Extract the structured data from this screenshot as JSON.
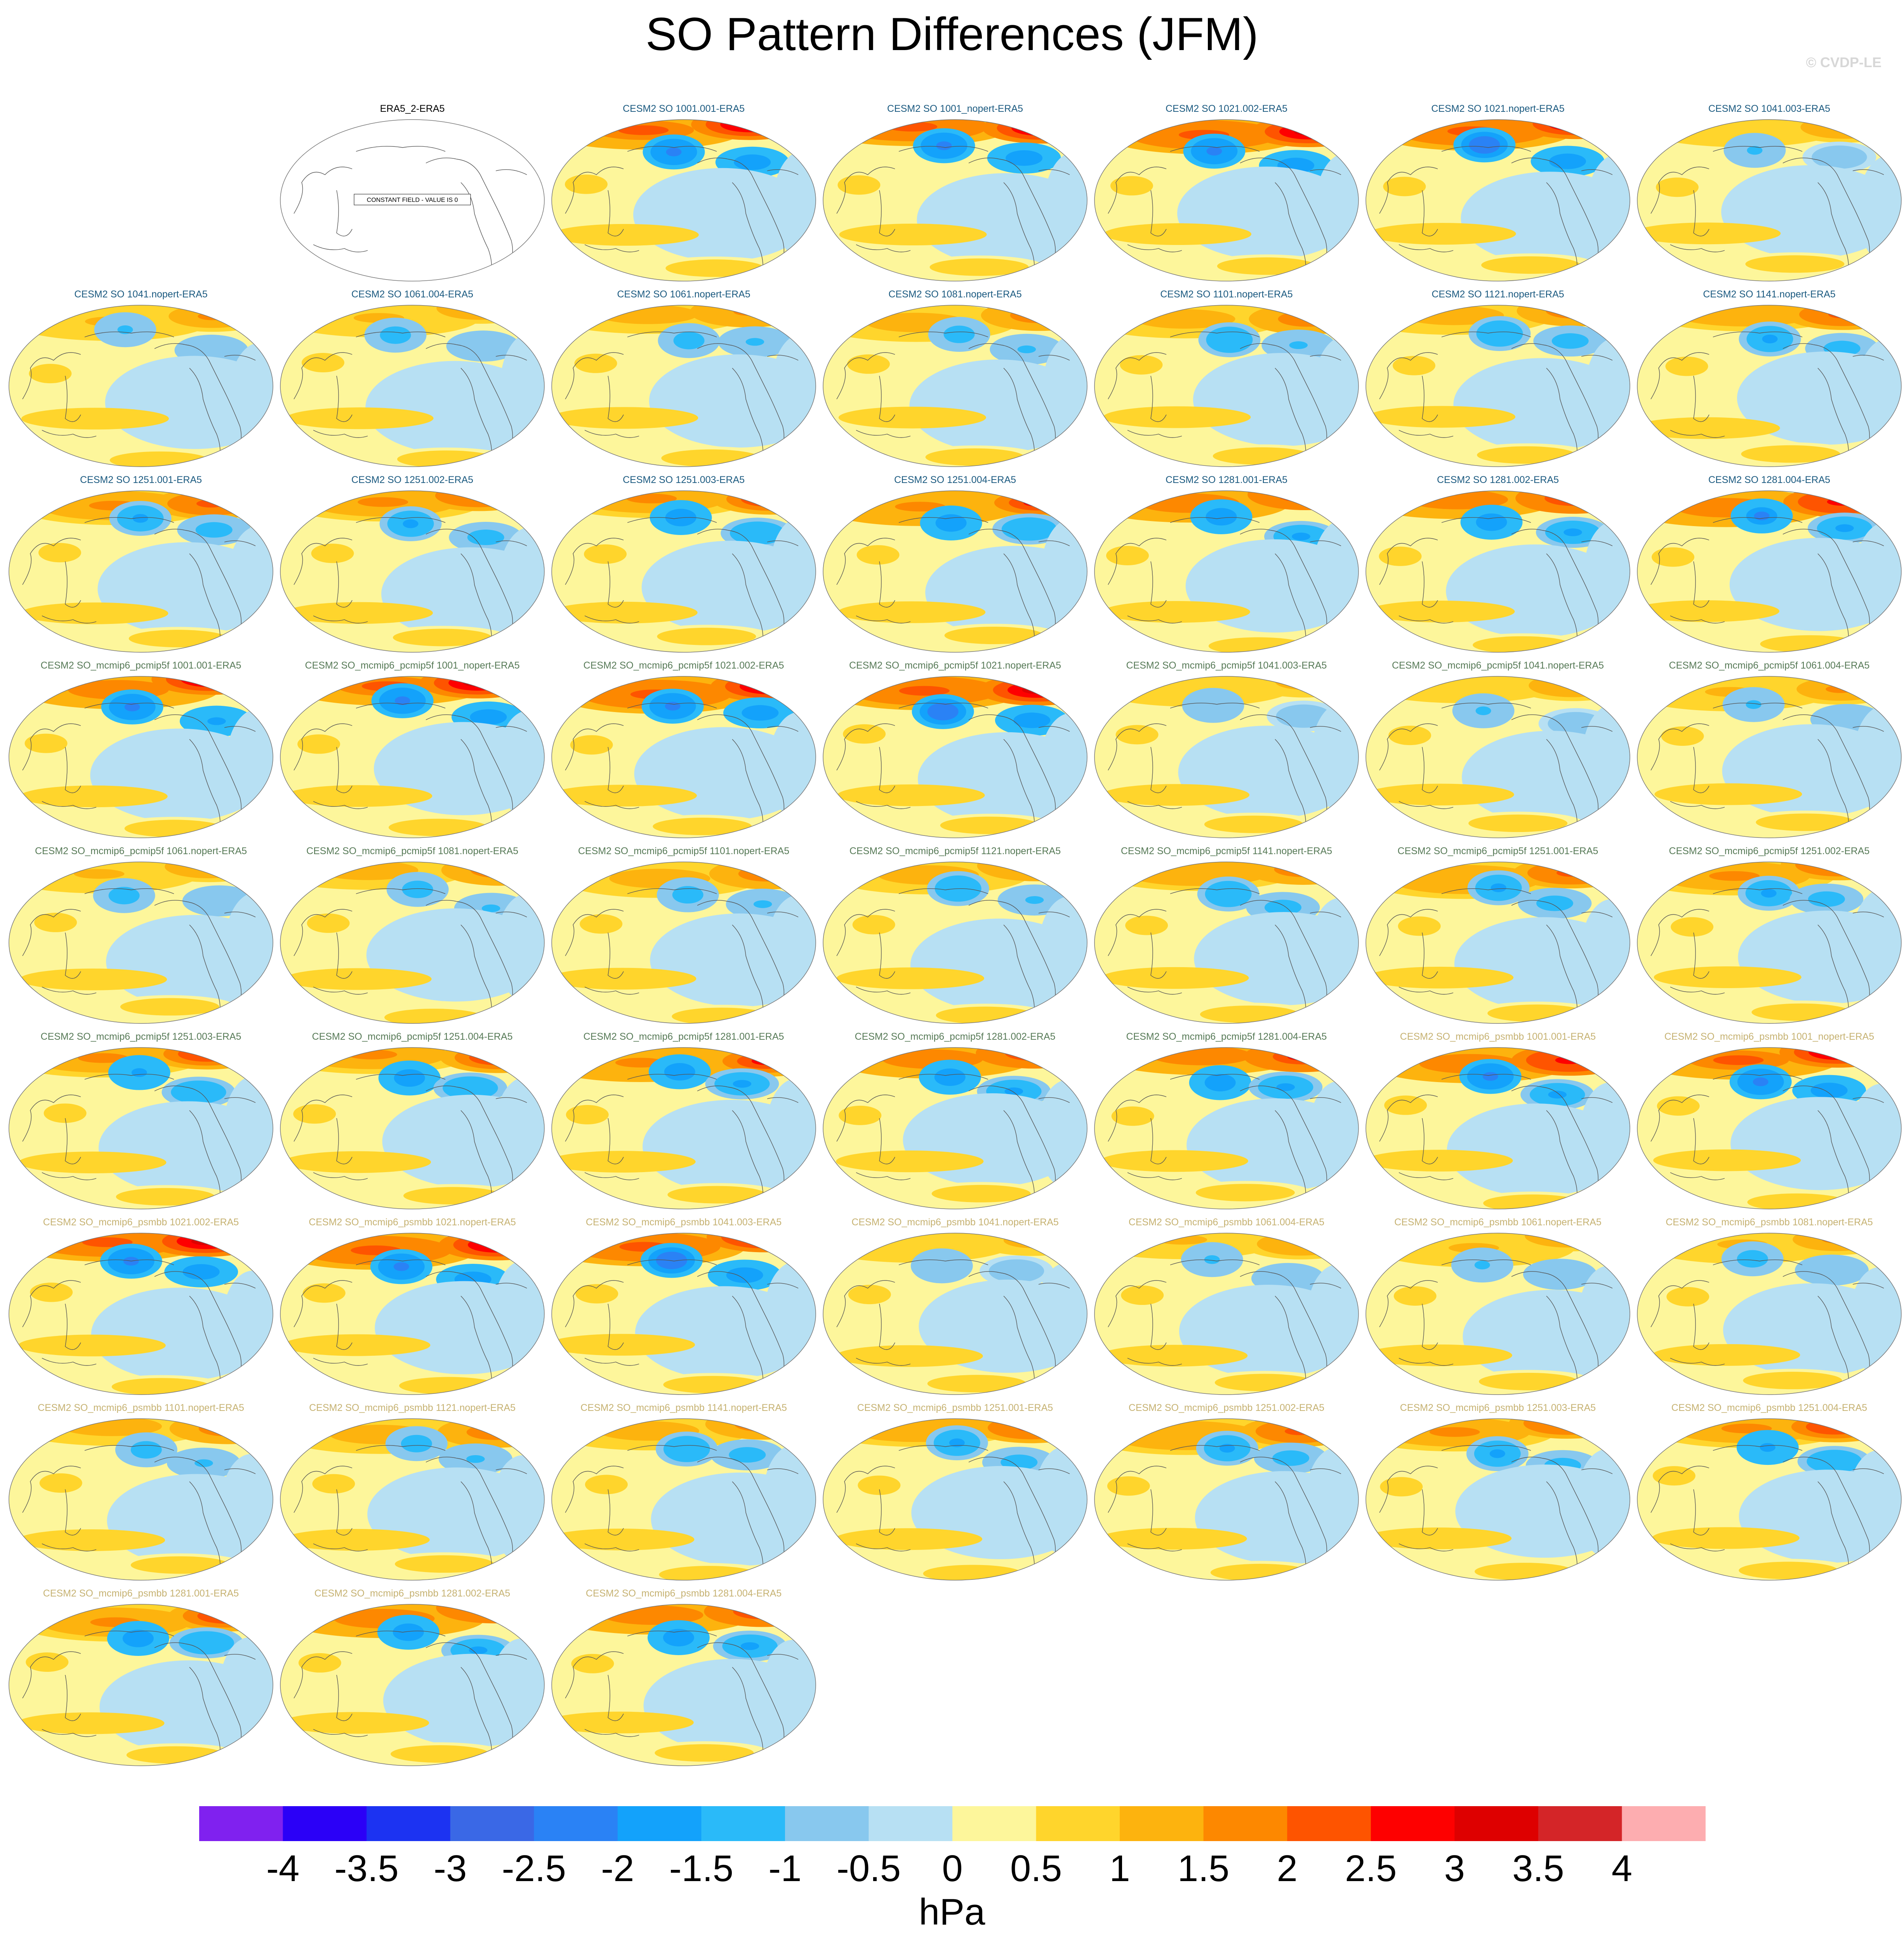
{
  "title": "SO Pattern Differences (JFM)",
  "credit": "© CVDP-LE",
  "chart_data": {
    "type": "heatmap",
    "title": "SO Pattern Differences (JFM)",
    "colorbar": {
      "units": "hPa",
      "levels": [
        "-4",
        "-3.5",
        "-3",
        "-2.5",
        "-2",
        "-1.5",
        "-1",
        "-0.5",
        "0",
        "0.5",
        "1",
        "1.5",
        "2",
        "2.5",
        "3",
        "3.5",
        "4"
      ],
      "colors": [
        "#8021ef",
        "#2b00f7",
        "#1c33f2",
        "#3a68e6",
        "#2a82f5",
        "#13a2fb",
        "#2abaf9",
        "#88c8ee",
        "#b7e0f3",
        "#fdf69b",
        "#ffd52c",
        "#fdb30e",
        "#fd8800",
        "#fe5400",
        "#fe0000",
        "#de0000",
        "#d42528",
        "#fdadb0"
      ]
    },
    "group_colors": {
      "a": "#000000",
      "b": "#1b5a80",
      "c": "#577a57",
      "d": "#c6b272"
    },
    "panels": [
      {
        "label": "ERA5_2-ERA5",
        "group": "a",
        "constant": true,
        "note": "CONSTANT FIELD - VALUE IS 0"
      },
      {
        "label": "CESM2 SO 1001.001-ERA5",
        "group": "b"
      },
      {
        "label": "CESM2 SO 1001_nopert-ERA5",
        "group": "b"
      },
      {
        "label": "CESM2 SO 1021.002-ERA5",
        "group": "b"
      },
      {
        "label": "CESM2 SO 1021.nopert-ERA5",
        "group": "b"
      },
      {
        "label": "CESM2 SO 1041.003-ERA5",
        "group": "b"
      },
      {
        "label": "CESM2 SO 1041.nopert-ERA5",
        "group": "b"
      },
      {
        "label": "CESM2 SO 1061.004-ERA5",
        "group": "b"
      },
      {
        "label": "CESM2 SO 1061.nopert-ERA5",
        "group": "b"
      },
      {
        "label": "CESM2 SO 1081.nopert-ERA5",
        "group": "b"
      },
      {
        "label": "CESM2 SO 1101.nopert-ERA5",
        "group": "b"
      },
      {
        "label": "CESM2 SO 1121.nopert-ERA5",
        "group": "b"
      },
      {
        "label": "CESM2 SO 1141.nopert-ERA5",
        "group": "b"
      },
      {
        "label": "CESM2 SO 1251.001-ERA5",
        "group": "b"
      },
      {
        "label": "CESM2 SO 1251.002-ERA5",
        "group": "b"
      },
      {
        "label": "CESM2 SO 1251.003-ERA5",
        "group": "b"
      },
      {
        "label": "CESM2 SO 1251.004-ERA5",
        "group": "b"
      },
      {
        "label": "CESM2 SO 1281.001-ERA5",
        "group": "b"
      },
      {
        "label": "CESM2 SO 1281.002-ERA5",
        "group": "b"
      },
      {
        "label": "CESM2 SO 1281.004-ERA5",
        "group": "b"
      },
      {
        "label": "CESM2 SO_mcmip6_pcmip5f 1001.001-ERA5",
        "group": "c"
      },
      {
        "label": "CESM2 SO_mcmip6_pcmip5f 1001_nopert-ERA5",
        "group": "c"
      },
      {
        "label": "CESM2 SO_mcmip6_pcmip5f 1021.002-ERA5",
        "group": "c"
      },
      {
        "label": "CESM2 SO_mcmip6_pcmip5f 1021.nopert-ERA5",
        "group": "c"
      },
      {
        "label": "CESM2 SO_mcmip6_pcmip5f 1041.003-ERA5",
        "group": "c"
      },
      {
        "label": "CESM2 SO_mcmip6_pcmip5f 1041.nopert-ERA5",
        "group": "c"
      },
      {
        "label": "CESM2 SO_mcmip6_pcmip5f 1061.004-ERA5",
        "group": "c"
      },
      {
        "label": "CESM2 SO_mcmip6_pcmip5f 1061.nopert-ERA5",
        "group": "c"
      },
      {
        "label": "CESM2 SO_mcmip6_pcmip5f 1081.nopert-ERA5",
        "group": "c"
      },
      {
        "label": "CESM2 SO_mcmip6_pcmip5f 1101.nopert-ERA5",
        "group": "c"
      },
      {
        "label": "CESM2 SO_mcmip6_pcmip5f 1121.nopert-ERA5",
        "group": "c"
      },
      {
        "label": "CESM2 SO_mcmip6_pcmip5f 1141.nopert-ERA5",
        "group": "c"
      },
      {
        "label": "CESM2 SO_mcmip6_pcmip5f 1251.001-ERA5",
        "group": "c"
      },
      {
        "label": "CESM2 SO_mcmip6_pcmip5f 1251.002-ERA5",
        "group": "c"
      },
      {
        "label": "CESM2 SO_mcmip6_pcmip5f 1251.003-ERA5",
        "group": "c"
      },
      {
        "label": "CESM2 SO_mcmip6_pcmip5f 1251.004-ERA5",
        "group": "c"
      },
      {
        "label": "CESM2 SO_mcmip6_pcmip5f 1281.001-ERA5",
        "group": "c"
      },
      {
        "label": "CESM2 SO_mcmip6_pcmip5f 1281.002-ERA5",
        "group": "c"
      },
      {
        "label": "CESM2 SO_mcmip6_pcmip5f 1281.004-ERA5",
        "group": "c"
      },
      {
        "label": "CESM2 SO_mcmip6_psmbb 1001.001-ERA5",
        "group": "d"
      },
      {
        "label": "CESM2 SO_mcmip6_psmbb 1001_nopert-ERA5",
        "group": "d"
      },
      {
        "label": "CESM2 SO_mcmip6_psmbb 1021.002-ERA5",
        "group": "d"
      },
      {
        "label": "CESM2 SO_mcmip6_psmbb 1021.nopert-ERA5",
        "group": "d"
      },
      {
        "label": "CESM2 SO_mcmip6_psmbb 1041.003-ERA5",
        "group": "d"
      },
      {
        "label": "CESM2 SO_mcmip6_psmbb 1041.nopert-ERA5",
        "group": "d"
      },
      {
        "label": "CESM2 SO_mcmip6_psmbb 1061.004-ERA5",
        "group": "d"
      },
      {
        "label": "CESM2 SO_mcmip6_psmbb 1061.nopert-ERA5",
        "group": "d"
      },
      {
        "label": "CESM2 SO_mcmip6_psmbb 1081.nopert-ERA5",
        "group": "d"
      },
      {
        "label": "CESM2 SO_mcmip6_psmbb 1101.nopert-ERA5",
        "group": "d"
      },
      {
        "label": "CESM2 SO_mcmip6_psmbb 1121.nopert-ERA5",
        "group": "d"
      },
      {
        "label": "CESM2 SO_mcmip6_psmbb 1141.nopert-ERA5",
        "group": "d"
      },
      {
        "label": "CESM2 SO_mcmip6_psmbb 1251.001-ERA5",
        "group": "d"
      },
      {
        "label": "CESM2 SO_mcmip6_psmbb 1251.002-ERA5",
        "group": "d"
      },
      {
        "label": "CESM2 SO_mcmip6_psmbb 1251.003-ERA5",
        "group": "d"
      },
      {
        "label": "CESM2 SO_mcmip6_psmbb 1251.004-ERA5",
        "group": "d"
      },
      {
        "label": "CESM2 SO_mcmip6_psmbb 1281.001-ERA5",
        "group": "d"
      },
      {
        "label": "CESM2 SO_mcmip6_psmbb 1281.002-ERA5",
        "group": "d"
      },
      {
        "label": "CESM2 SO_mcmip6_psmbb 1281.004-ERA5",
        "group": "d"
      }
    ]
  }
}
